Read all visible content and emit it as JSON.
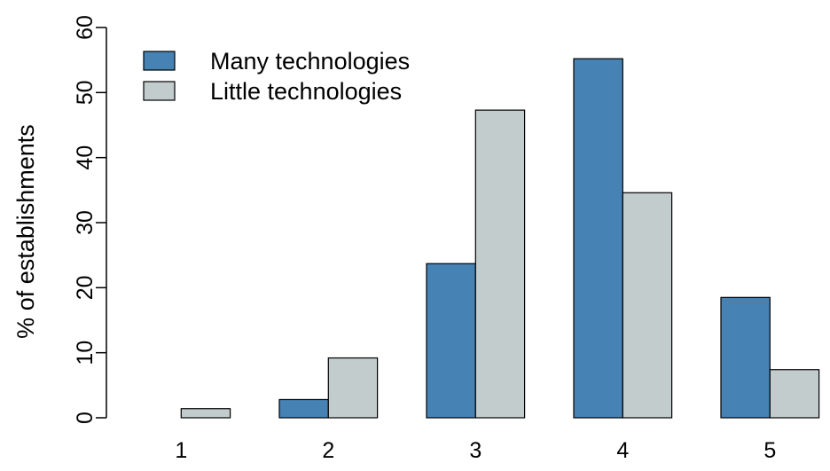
{
  "chart_data": {
    "type": "bar",
    "title": "",
    "xlabel": "",
    "ylabel": "% of establishments",
    "categories": [
      "1",
      "2",
      "3",
      "4",
      "5"
    ],
    "series": [
      {
        "name": "Many technologies",
        "values": [
          0,
          2.8,
          23.7,
          55.2,
          18.5
        ],
        "color": "#4682b4"
      },
      {
        "name": "Little technologies",
        "values": [
          1.4,
          9.2,
          47.3,
          34.6,
          7.4
        ],
        "color": "#c2cccc"
      }
    ],
    "ylim": [
      0,
      60
    ],
    "yticks": [
      0,
      10,
      20,
      30,
      40,
      50,
      60
    ],
    "grid": false,
    "legend_position": "top-left",
    "bar_mode": "grouped"
  }
}
